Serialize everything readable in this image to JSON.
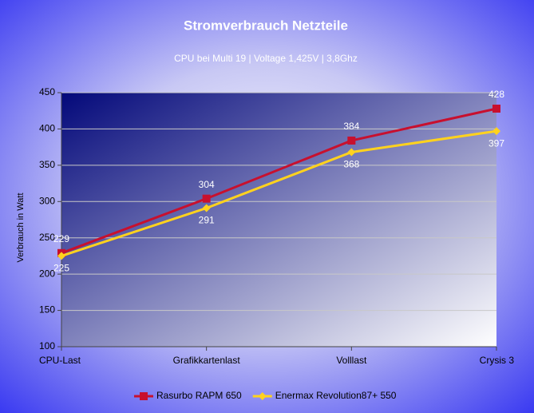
{
  "chart_data": {
    "type": "line",
    "title": "Stromverbrauch Netzteile",
    "subtitle": "CPU bei Multi 19 | Voltage 1,425V | 3,8Ghz",
    "y_label": "Verbrauch in Watt",
    "categories": [
      "CPU-Last",
      "Grafikkartenlast",
      "Volllast",
      "Crysis 3"
    ],
    "series": [
      {
        "name": "Rasurbo RAPM 650",
        "color": "#c8102e",
        "marker": "square",
        "label_position": "above",
        "values": [
          229,
          304,
          384,
          428
        ]
      },
      {
        "name": "Enermax Revolution87+ 550",
        "color": "#ffd21e",
        "marker": "diamond",
        "label_position": "below",
        "values": [
          225,
          291,
          368,
          397
        ]
      }
    ],
    "ylim": [
      100,
      450
    ],
    "yticks": [
      100,
      150,
      200,
      250,
      300,
      350,
      400,
      450
    ],
    "grid": true,
    "legend": "bottom"
  }
}
